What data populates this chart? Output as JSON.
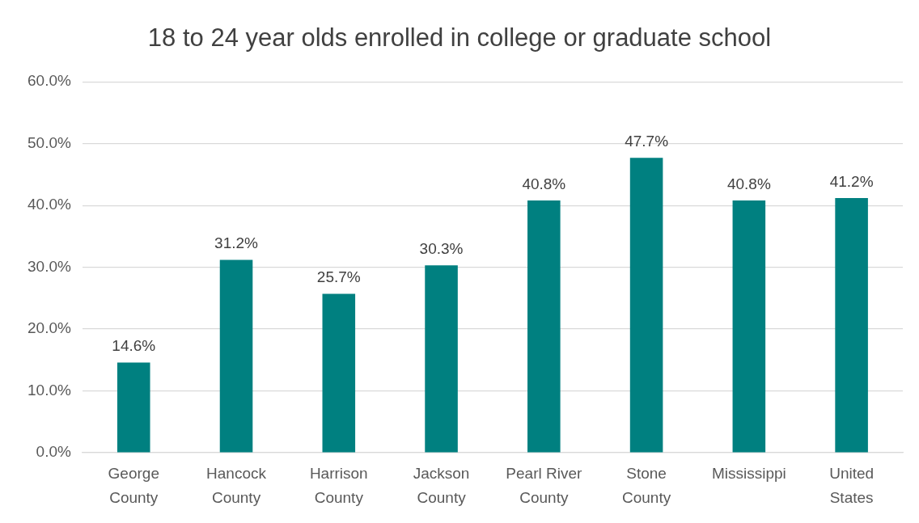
{
  "chart_data": {
    "type": "bar",
    "title": "18 to 24 year olds enrolled in college or graduate school",
    "categories": [
      "George County",
      "Hancock County",
      "Harrison County",
      "Jackson County",
      "Pearl River County",
      "Stone County",
      "Mississippi",
      "United States"
    ],
    "values": [
      14.6,
      31.2,
      25.7,
      30.3,
      40.8,
      47.7,
      40.8,
      41.2
    ],
    "value_labels": [
      "14.6%",
      "31.2%",
      "25.7%",
      "30.3%",
      "40.8%",
      "47.7%",
      "40.8%",
      "41.2%"
    ],
    "color": "#008080",
    "ylim": [
      0,
      60
    ],
    "yticks": [
      {
        "value": 0,
        "label": "0.0%"
      },
      {
        "value": 10,
        "label": "10.0%"
      },
      {
        "value": 20,
        "label": "20.0%"
      },
      {
        "value": 30,
        "label": "30.0%"
      },
      {
        "value": 40,
        "label": "40.0%"
      },
      {
        "value": 50,
        "label": "50.0%"
      },
      {
        "value": 60,
        "label": "60.0%"
      }
    ],
    "grid": "y"
  }
}
